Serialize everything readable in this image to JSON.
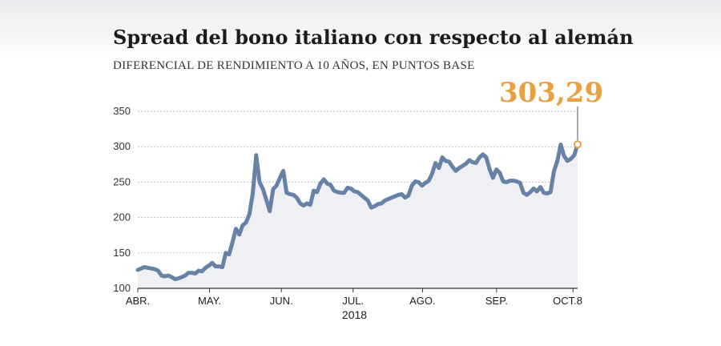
{
  "header": {
    "title": "Spread del bono italiano con respecto al alemán",
    "subtitle": "DIFERENCIAL DE RENDIMIENTO A 10 AÑOS, EN PUNTOS BASE"
  },
  "callout": {
    "value_label": "303,29"
  },
  "colors": {
    "line": "#6683a7",
    "area": "#eef0f3",
    "grid": "#bdbdbd",
    "axis": "#333333",
    "highlight": "#e8a040"
  },
  "chart_data": {
    "type": "line",
    "title": "Spread del bono italiano con respecto al alemán",
    "subtitle": "DIFERENCIAL DE RENDIMIENTO A 10 AÑOS, EN PUNTOS BASE",
    "xlabel": "2018",
    "ylabel": "",
    "ylim": [
      100,
      350
    ],
    "yticks": [
      100,
      150,
      200,
      250,
      300,
      350
    ],
    "grid": true,
    "fill_area": true,
    "x_tick_labels": [
      "ABR.",
      "MAY.",
      "JUN.",
      "JUL.",
      "AGO.",
      "SEP.",
      "OCT.8"
    ],
    "x_tick_days": [
      0,
      31,
      62,
      93,
      123,
      155,
      188
    ],
    "x_range_days": [
      0,
      190
    ],
    "annotation": {
      "label": "303,29",
      "day": 190,
      "value": 303.29
    },
    "series": [
      {
        "values": [
          126,
          128,
          130,
          129,
          128,
          127,
          125,
          118,
          117,
          118,
          116,
          113,
          114,
          116,
          118,
          122,
          122,
          121,
          125,
          124,
          129,
          132,
          136,
          131,
          131,
          130,
          150,
          148,
          165,
          184,
          176,
          189,
          193,
          205,
          235,
          288,
          250,
          240,
          225,
          209,
          240,
          245,
          256,
          266,
          235,
          233,
          232,
          228,
          220,
          217,
          220,
          218,
          238,
          236,
          248,
          254,
          248,
          246,
          238,
          236,
          235,
          235,
          242,
          241,
          237,
          236,
          232,
          228,
          224,
          214,
          216,
          219,
          220,
          224,
          226,
          228,
          230,
          232,
          233,
          228,
          231,
          245,
          251,
          250,
          245,
          249,
          252,
          262,
          277,
          270,
          285,
          280,
          279,
          272,
          266,
          270,
          273,
          276,
          281,
          278,
          277,
          285,
          289,
          285,
          268,
          256,
          268,
          263,
          251,
          250,
          252,
          252,
          251,
          249,
          235,
          232,
          236,
          241,
          237,
          243,
          235,
          234,
          236,
          265,
          280,
          303,
          287,
          280,
          283,
          288,
          303.29
        ]
      }
    ]
  }
}
